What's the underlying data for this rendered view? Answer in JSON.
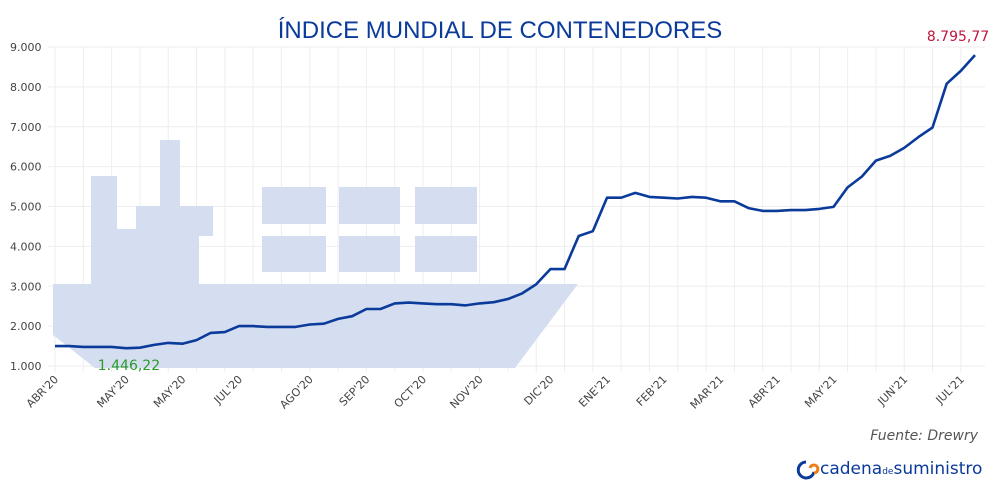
{
  "chart_data": {
    "type": "line",
    "title": "ÍNDICE MUNDIAL DE CONTENEDORES",
    "source": "Fuente: Drewry",
    "brand": {
      "first": "cadena",
      "small": "de",
      "last": "suministro"
    },
    "categories": [
      "ABR'20",
      null,
      null,
      null,
      null,
      "MAY'20",
      null,
      null,
      null,
      "MAY'20",
      null,
      null,
      null,
      "JUL'20",
      null,
      null,
      null,
      null,
      "AGO'20",
      null,
      null,
      null,
      "SEP'20",
      null,
      null,
      null,
      "OCT'20",
      null,
      null,
      null,
      "NOV'20",
      null,
      null,
      null,
      null,
      "DIC'20",
      null,
      null,
      null,
      "ENE'21",
      null,
      null,
      null,
      "FEB'21",
      null,
      null,
      null,
      "MAR'21",
      null,
      null,
      null,
      "ABR'21",
      null,
      null,
      null,
      "MAY'21",
      null,
      null,
      null,
      null,
      "JUN'21",
      null,
      null,
      null,
      "JUL'21",
      null
    ],
    "series": [
      {
        "name": null,
        "color": "#0a3a9a",
        "values": [
          1500,
          1500,
          1480,
          1480,
          1480,
          1446.22,
          1460,
          1530,
          1580,
          1560,
          1650,
          1830,
          1850,
          2000,
          2000,
          1980,
          1980,
          1980,
          2040,
          2060,
          2180,
          2250,
          2430,
          2430,
          2570,
          2590,
          2570,
          2550,
          2550,
          2520,
          2570,
          2600,
          2680,
          2820,
          3050,
          3430,
          3430,
          4260,
          4380,
          5220,
          5220,
          5340,
          5240,
          5220,
          5200,
          5240,
          5220,
          5130,
          5130,
          4960,
          4890,
          4890,
          4910,
          4910,
          4940,
          4990,
          5480,
          5750,
          6150,
          6270,
          6470,
          6740,
          6980,
          8080,
          8400,
          8795.77
        ],
        "value_labels": [
          null,
          null,
          null,
          null,
          null,
          "1.446,22",
          null,
          null,
          null,
          null,
          null,
          null,
          null,
          null,
          null,
          null,
          null,
          null,
          null,
          null,
          null,
          null,
          null,
          null,
          null,
          null,
          null,
          null,
          null,
          null,
          null,
          null,
          null,
          null,
          null,
          null,
          null,
          null,
          null,
          null,
          null,
          null,
          null,
          null,
          null,
          null,
          null,
          null,
          null,
          null,
          null,
          null,
          null,
          null,
          null,
          null,
          null,
          null,
          null,
          null,
          null,
          null,
          null,
          null,
          null,
          "8.795,77"
        ]
      }
    ],
    "ylim": [
      1000,
      9000
    ],
    "yticks": [
      {
        "value": 1000,
        "label": "1.000"
      },
      {
        "value": 2000,
        "label": "2.000"
      },
      {
        "value": 3000,
        "label": "3.000"
      },
      {
        "value": 4000,
        "label": "4.000"
      },
      {
        "value": 5000,
        "label": "5.000"
      },
      {
        "value": 6000,
        "label": "6.000"
      },
      {
        "value": 7000,
        "label": "7.000"
      },
      {
        "value": 8000,
        "label": "8.000"
      },
      {
        "value": 9000,
        "label": "9.000"
      }
    ],
    "grid": true
  }
}
